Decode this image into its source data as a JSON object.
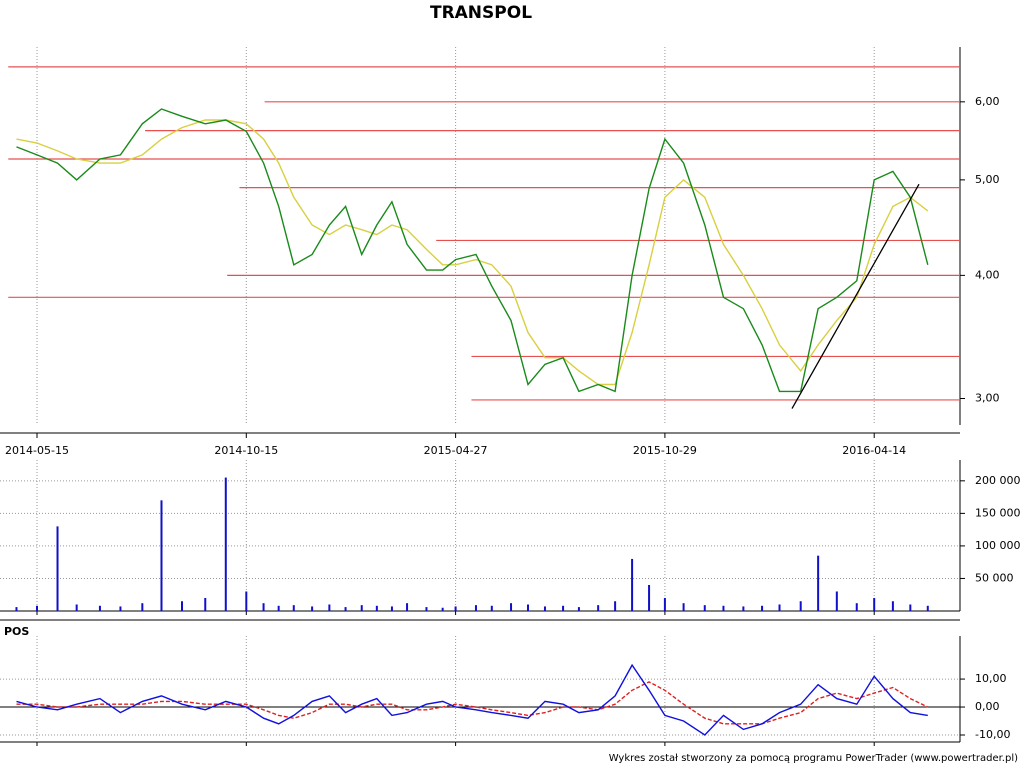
{
  "chart_data": [
    {
      "type": "line",
      "title": "TRANSPOL",
      "log": true,
      "grid": true,
      "xlim": [
        "2014-04-24",
        "2016-06-06"
      ],
      "xticks": [
        "2014-05-15",
        "2014-10-15",
        "2015-04-27",
        "2015-10-29",
        "2016-04-14"
      ],
      "ylim": [
        2.82,
        6.82
      ],
      "yticks": [
        {
          "value": 3,
          "label": "3,00"
        },
        {
          "value": 4,
          "label": "4,00"
        },
        {
          "value": 5,
          "label": "5,00"
        },
        {
          "value": 6,
          "label": "6,00"
        }
      ],
      "x": [
        "2014-04-30",
        "2014-05-15",
        "2014-05-30",
        "2014-06-13",
        "2014-06-30",
        "2014-07-15",
        "2014-07-31",
        "2014-08-14",
        "2014-08-29",
        "2014-09-15",
        "2014-09-30",
        "2014-10-15",
        "2014-10-31",
        "2014-11-14",
        "2014-11-28",
        "2014-12-15",
        "2014-12-31",
        "2015-01-15",
        "2015-01-30",
        "2015-02-13",
        "2015-02-27",
        "2015-03-13",
        "2015-03-31",
        "2015-04-15",
        "2015-04-27",
        "2015-05-15",
        "2015-05-29",
        "2015-06-15",
        "2015-06-30",
        "2015-07-15",
        "2015-07-31",
        "2015-08-14",
        "2015-08-31",
        "2015-09-15",
        "2015-09-30",
        "2015-10-15",
        "2015-10-29",
        "2015-11-13",
        "2015-11-30",
        "2015-12-15",
        "2015-12-31",
        "2016-01-15",
        "2016-01-29",
        "2016-02-15",
        "2016-02-29",
        "2016-03-15",
        "2016-03-31",
        "2016-04-14",
        "2016-04-29",
        "2016-05-13",
        "2016-05-27"
      ],
      "series": [
        {
          "color": "#1a8a1a",
          "values": [
            5.4,
            5.3,
            5.2,
            5.0,
            5.25,
            5.3,
            5.7,
            5.9,
            5.8,
            5.7,
            5.75,
            5.6,
            5.2,
            4.7,
            4.1,
            4.2,
            4.5,
            4.7,
            4.2,
            4.5,
            4.75,
            4.3,
            4.05,
            4.05,
            4.15,
            4.2,
            3.9,
            3.6,
            3.1,
            3.25,
            3.3,
            3.05,
            3.1,
            3.05,
            4.0,
            4.9,
            5.5,
            5.2,
            4.5,
            3.8,
            3.7,
            3.4,
            3.05,
            3.05,
            3.7,
            3.8,
            3.95,
            5.0,
            5.1,
            4.8,
            4.1
          ]
        },
        {
          "color": "#d8d040",
          "values": [
            5.5,
            5.45,
            5.35,
            5.25,
            5.2,
            5.2,
            5.3,
            5.5,
            5.65,
            5.75,
            5.75,
            5.7,
            5.5,
            5.2,
            4.8,
            4.5,
            4.4,
            4.5,
            4.45,
            4.4,
            4.5,
            4.45,
            4.25,
            4.1,
            4.1,
            4.15,
            4.1,
            3.9,
            3.5,
            3.3,
            3.3,
            3.2,
            3.1,
            3.1,
            3.5,
            4.1,
            4.8,
            5.0,
            4.8,
            4.3,
            4.0,
            3.7,
            3.4,
            3.2,
            3.4,
            3.6,
            3.8,
            4.3,
            4.7,
            4.8,
            4.65
          ]
        }
      ],
      "hline_color": "#e85050",
      "hlines": [
        {
          "value": 6.51,
          "from": "2014-04-24"
        },
        {
          "value": 6.0,
          "from": "2014-11-01"
        },
        {
          "value": 5.61,
          "from": "2014-08-02"
        },
        {
          "value": 5.25,
          "from": "2014-04-24"
        },
        {
          "value": 4.91,
          "from": "2014-10-10"
        },
        {
          "value": 4.34,
          "from": "2015-04-09"
        },
        {
          "value": 4.0,
          "from": "2014-10-01"
        },
        {
          "value": 3.8,
          "from": "2014-04-24"
        },
        {
          "value": 3.31,
          "from": "2015-05-11"
        },
        {
          "value": 2.99,
          "from": "2015-05-11"
        }
      ],
      "trendline": {
        "x": [
          "2016-02-08",
          "2016-05-20"
        ],
        "values": [
          2.93,
          4.95
        ]
      }
    },
    {
      "type": "bar",
      "color": "#1010c8",
      "grid": true,
      "xlim": [
        "2014-04-24",
        "2016-06-06"
      ],
      "xticks": [
        "2014-05-15",
        "2014-10-15",
        "2015-04-27",
        "2015-10-29",
        "2016-04-14"
      ],
      "ylim": [
        0,
        232000
      ],
      "yticks": [
        {
          "value": 50000,
          "label": "50 000"
        },
        {
          "value": 100000,
          "label": "100 000"
        },
        {
          "value": 150000,
          "label": "150 000"
        },
        {
          "value": 200000,
          "label": "200 000"
        }
      ],
      "x": [
        "2014-04-30",
        "2014-05-15",
        "2014-05-30",
        "2014-06-13",
        "2014-06-30",
        "2014-07-15",
        "2014-07-31",
        "2014-08-14",
        "2014-08-29",
        "2014-09-15",
        "2014-09-30",
        "2014-10-15",
        "2014-10-31",
        "2014-11-14",
        "2014-11-28",
        "2014-12-15",
        "2014-12-31",
        "2015-01-15",
        "2015-01-30",
        "2015-02-13",
        "2015-02-27",
        "2015-03-13",
        "2015-03-31",
        "2015-04-15",
        "2015-04-27",
        "2015-05-15",
        "2015-05-29",
        "2015-06-15",
        "2015-06-30",
        "2015-07-15",
        "2015-07-31",
        "2015-08-14",
        "2015-08-31",
        "2015-09-15",
        "2015-09-30",
        "2015-10-15",
        "2015-10-29",
        "2015-11-13",
        "2015-11-30",
        "2015-12-15",
        "2015-12-31",
        "2016-01-15",
        "2016-01-29",
        "2016-02-15",
        "2016-02-29",
        "2016-03-15",
        "2016-03-31",
        "2016-04-14",
        "2016-04-29",
        "2016-05-13",
        "2016-05-27"
      ],
      "values": [
        6000,
        8000,
        130000,
        10000,
        8000,
        7000,
        12000,
        170000,
        15000,
        20000,
        205000,
        30000,
        12000,
        8000,
        9000,
        7000,
        10000,
        6000,
        9000,
        8000,
        7000,
        12000,
        6000,
        5000,
        7000,
        9000,
        8000,
        12000,
        10000,
        7000,
        8000,
        6000,
        9000,
        15000,
        80000,
        40000,
        20000,
        12000,
        9000,
        8000,
        7000,
        8000,
        10000,
        15000,
        85000,
        30000,
        12000,
        20000,
        15000,
        10000,
        8000
      ]
    },
    {
      "type": "line",
      "title": "POS",
      "grid": true,
      "xlim": [
        "2014-04-24",
        "2016-06-06"
      ],
      "xticks": [
        "2014-05-15",
        "2014-10-15",
        "2015-04-27",
        "2015-10-29",
        "2016-04-14"
      ],
      "ylim": [
        -12.5,
        25.4
      ],
      "yticks": [
        {
          "value": -10,
          "label": "-10,00"
        },
        {
          "value": 0,
          "label": "0,00"
        },
        {
          "value": 10,
          "label": "10,00"
        }
      ],
      "x": [
        "2014-04-30",
        "2014-05-15",
        "2014-05-30",
        "2014-06-13",
        "2014-06-30",
        "2014-07-15",
        "2014-07-31",
        "2014-08-14",
        "2014-08-29",
        "2014-09-15",
        "2014-09-30",
        "2014-10-15",
        "2014-10-31",
        "2014-11-14",
        "2014-11-28",
        "2014-12-15",
        "2014-12-31",
        "2015-01-15",
        "2015-01-30",
        "2015-02-13",
        "2015-02-27",
        "2015-03-13",
        "2015-03-31",
        "2015-04-15",
        "2015-04-27",
        "2015-05-15",
        "2015-05-29",
        "2015-06-15",
        "2015-06-30",
        "2015-07-15",
        "2015-07-31",
        "2015-08-14",
        "2015-08-31",
        "2015-09-15",
        "2015-09-30",
        "2015-10-15",
        "2015-10-29",
        "2015-11-13",
        "2015-11-30",
        "2015-12-15",
        "2015-12-31",
        "2016-01-15",
        "2016-01-29",
        "2016-02-15",
        "2016-02-29",
        "2016-03-15",
        "2016-03-31",
        "2016-04-14",
        "2016-04-29",
        "2016-05-13",
        "2016-05-27"
      ],
      "series": [
        {
          "color": "#1010e0",
          "dash": false,
          "values": [
            2,
            0,
            -1,
            1,
            3,
            -2,
            2,
            4,
            1,
            -1,
            2,
            0,
            -4,
            -6,
            -3,
            2,
            4,
            -2,
            1,
            3,
            -3,
            -2,
            1,
            2,
            0,
            -1,
            -2,
            -3,
            -4,
            2,
            1,
            -2,
            -1,
            4,
            15,
            6,
            -3,
            -5,
            -10,
            -3,
            -8,
            -6,
            -2,
            1,
            8,
            3,
            1,
            11,
            3,
            -2,
            -3
          ]
        },
        {
          "color": "#e02020",
          "dash": true,
          "values": [
            1,
            1,
            0,
            0,
            1,
            1,
            1,
            2,
            2,
            1,
            1,
            1,
            -1,
            -3,
            -4,
            -2,
            1,
            1,
            0,
            1,
            1,
            -1,
            -1,
            0,
            1,
            0,
            -1,
            -2,
            -3,
            -2,
            0,
            0,
            -1,
            1,
            6,
            9,
            6,
            1,
            -4,
            -6,
            -6,
            -6,
            -4,
            -2,
            3,
            5,
            3,
            5,
            7,
            3,
            0
          ]
        }
      ]
    }
  ],
  "footer": "Wykres został stworzony za pomocą programu PowerTrader (www.powertrader.pl)"
}
